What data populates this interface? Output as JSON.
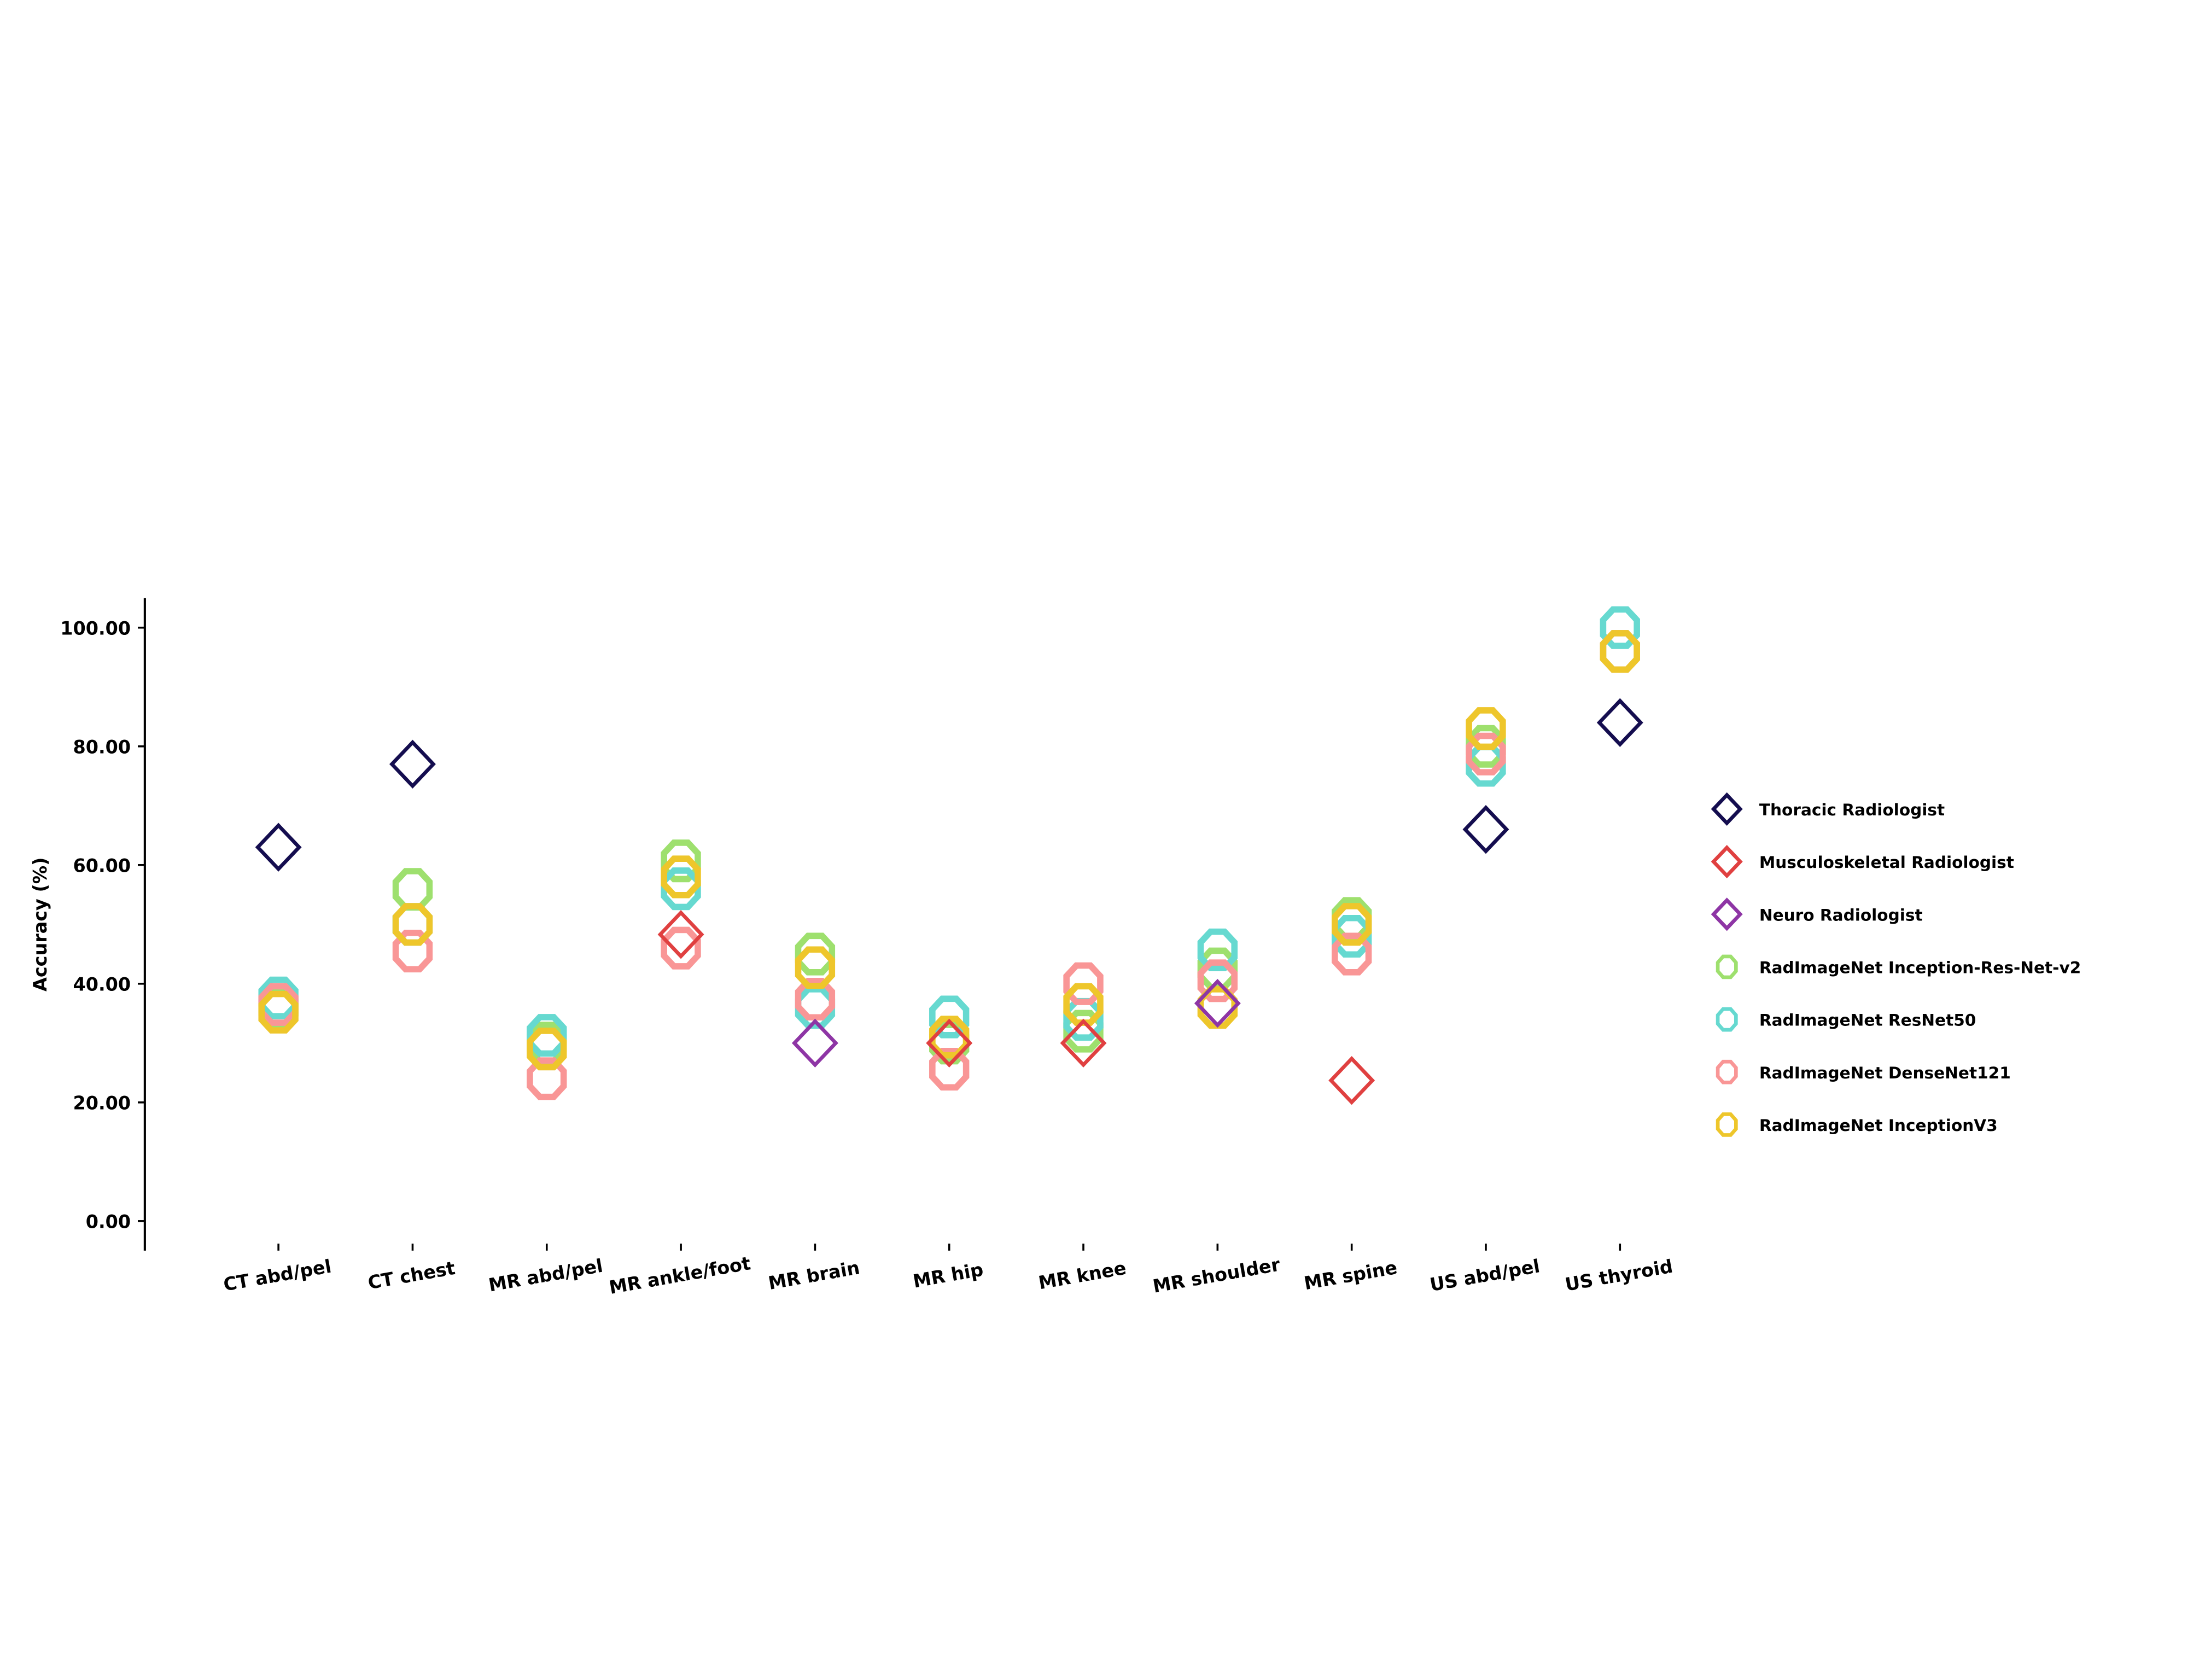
{
  "chart_data": {
    "type": "scatter",
    "title": "",
    "xlabel": "",
    "ylabel": "Accuracy (%)",
    "ylim": [
      -5,
      105
    ],
    "yticks": [
      "0.00",
      "20.00",
      "40.00",
      "60.00",
      "80.00",
      "100.00"
    ],
    "ytick_values": [
      0,
      20,
      40,
      60,
      80,
      100
    ],
    "grid": false,
    "legend_position": "right",
    "categories": [
      "CT abd/pel",
      "CT chest",
      "MR abd/pel",
      "MR ankle/foot",
      "MR brain",
      "MR hip",
      "MR knee",
      "MR shoulder",
      "MR spine",
      "US abd/pel",
      "US thyroid"
    ],
    "series": [
      {
        "name": "Thoracic Radiologist",
        "marker": "diamond",
        "color": "#140d4f",
        "values": [
          63,
          77,
          null,
          null,
          null,
          null,
          null,
          null,
          null,
          66,
          84
        ]
      },
      {
        "name": "Musculoskeletal Radiologist",
        "marker": "diamond",
        "color": "#e04040",
        "values": [
          null,
          null,
          null,
          48.3,
          null,
          30,
          30,
          null,
          23.7,
          null,
          null
        ]
      },
      {
        "name": "Neuro Radiologist",
        "marker": "diamond",
        "color": "#8e35a5",
        "values": [
          null,
          null,
          null,
          null,
          30,
          null,
          null,
          36.7,
          null,
          null,
          null
        ]
      },
      {
        "name": "RadImageNet Inception-Res-Net-v2",
        "marker": "octagon",
        "color": "#9ee06e",
        "values": [
          36,
          55.9,
          30,
          60.7,
          45,
          30,
          32,
          42.5,
          51,
          80,
          96
        ]
      },
      {
        "name": "RadImageNet ResNet50",
        "marker": "octagon",
        "color": "#66d9d0",
        "values": [
          37.6,
          50,
          31.3,
          56,
          36,
          34.4,
          34,
          45.7,
          48,
          76.8,
          100
        ]
      },
      {
        "name": "RadImageNet DenseNet121",
        "marker": "octagon",
        "color": "#f99696",
        "values": [
          36.5,
          45.5,
          24,
          46,
          37.4,
          25.6,
          40,
          40.5,
          45,
          78.7,
          96
        ]
      },
      {
        "name": "RadImageNet InceptionV3",
        "marker": "octagon",
        "color": "#eec62b",
        "values": [
          35.2,
          50,
          29,
          58,
          42.7,
          31,
          36.5,
          36,
          50,
          83,
          96
        ]
      }
    ]
  }
}
